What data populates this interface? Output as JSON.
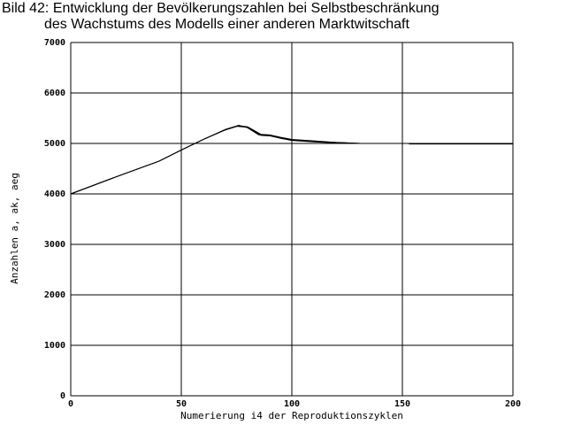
{
  "chart_data": {
    "type": "line",
    "title": "Bild 42: Entwicklung der Bevölkerungszahlen bei Selbstbeschränkung",
    "subtitle": "des Wachstums des Modells einer anderen Marktwitschaft",
    "xlabel": "Numerierung i4 der Reproduktionszyklen",
    "ylabel": "Anzahlen a, ak, aeg",
    "xlim": [
      0,
      200
    ],
    "ylim": [
      0,
      7000
    ],
    "xticks": [
      0,
      50,
      100,
      150,
      200
    ],
    "yticks": [
      0,
      1000,
      2000,
      3000,
      4000,
      5000,
      6000,
      7000
    ],
    "grid": true,
    "series": [
      {
        "name": "a",
        "segments": [
          [
            [
              0,
              4000
            ],
            [
              20,
              4330
            ],
            [
              40,
              4650
            ],
            [
              50,
              4870
            ],
            [
              60,
              5080
            ],
            [
              70,
              5280
            ],
            [
              76,
              5360
            ],
            [
              80,
              5310
            ],
            [
              85,
              5170
            ],
            [
              90,
              5160
            ],
            [
              95,
              5110
            ],
            [
              100,
              5070
            ],
            [
              110,
              5040
            ],
            [
              120,
              5020
            ],
            [
              131,
              5000
            ]
          ],
          [
            [
              153,
              5000
            ],
            [
              200,
              5000
            ]
          ]
        ]
      },
      {
        "name": "ak",
        "segments": [
          [
            [
              0,
              4000
            ],
            [
              20,
              4330
            ],
            [
              40,
              4650
            ],
            [
              50,
              4870
            ],
            [
              60,
              5080
            ],
            [
              70,
              5270
            ],
            [
              76,
              5350
            ],
            [
              80,
              5330
            ],
            [
              86,
              5180
            ],
            [
              90,
              5170
            ],
            [
              95,
              5120
            ],
            [
              100,
              5080
            ],
            [
              110,
              5050
            ],
            [
              120,
              5020
            ],
            [
              131,
              5000
            ]
          ],
          [
            [
              153,
              4990
            ],
            [
              200,
              4990
            ]
          ]
        ]
      },
      {
        "name": "aeg",
        "segments": [
          [
            [
              0,
              4000
            ],
            [
              20,
              4330
            ],
            [
              40,
              4650
            ],
            [
              50,
              4870
            ],
            [
              60,
              5080
            ],
            [
              70,
              5270
            ],
            [
              75,
              5340
            ],
            [
              80,
              5320
            ],
            [
              86,
              5160
            ],
            [
              90,
              5150
            ],
            [
              95,
              5100
            ],
            [
              100,
              5060
            ],
            [
              110,
              5030
            ],
            [
              120,
              5010
            ],
            [
              131,
              5000
            ]
          ],
          [
            [
              153,
              4995
            ],
            [
              200,
              4995
            ]
          ]
        ]
      }
    ]
  }
}
